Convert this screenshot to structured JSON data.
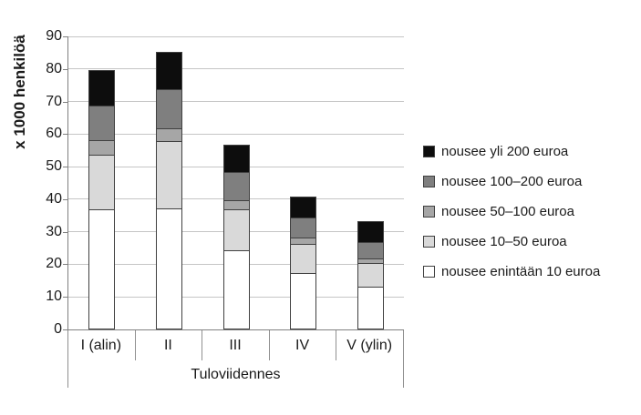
{
  "chart_data": {
    "type": "bar",
    "stacked": true,
    "orientation": "vertical",
    "categories": [
      "I (alin)",
      "II",
      "III",
      "IV",
      "V (ylin)"
    ],
    "series": [
      {
        "name": "nousee enintään 10 euroa",
        "color": "#ffffff",
        "values": [
          36.5,
          37,
          24,
          17,
          13
        ]
      },
      {
        "name": "nousee 10–50 euroa",
        "color": "#d9d9d9",
        "values": [
          17,
          20.5,
          12.5,
          9,
          7
        ]
      },
      {
        "name": "nousee 50–100 euroa",
        "color": "#a6a6a6",
        "values": [
          4.5,
          4,
          3,
          2,
          1.5
        ]
      },
      {
        "name": "nousee 100–200 euroa",
        "color": "#7f7f7f",
        "values": [
          10.5,
          12,
          8.5,
          6,
          5
        ]
      },
      {
        "name": "nousee yli 200 euroa",
        "color": "#0d0d0d",
        "values": [
          11,
          11.5,
          8.5,
          6.5,
          6.5
        ]
      }
    ],
    "stack_totals": [
      79.5,
      85,
      56.5,
      40.5,
      33
    ],
    "xlabel": "Tuloviidennes",
    "ylabel": "x 1000 henkilöä",
    "ylim": [
      0,
      90
    ],
    "yticks": [
      0,
      10,
      20,
      30,
      40,
      50,
      60,
      70,
      80,
      90
    ],
    "grid": true,
    "legend_position": "right",
    "legend_order_top_to_bottom": [
      "nousee yli 200 euroa",
      "nousee 100–200 euroa",
      "nousee 50–100 euroa",
      "nousee 10–50 euroa",
      "nousee enintään 10 euroa"
    ],
    "colors": {
      "bar_border": "#404040",
      "gridline": "#c6c6c6",
      "axis": "#808080",
      "separator": "#909090",
      "text": "#1a1a1a",
      "background": "#ffffff"
    }
  }
}
